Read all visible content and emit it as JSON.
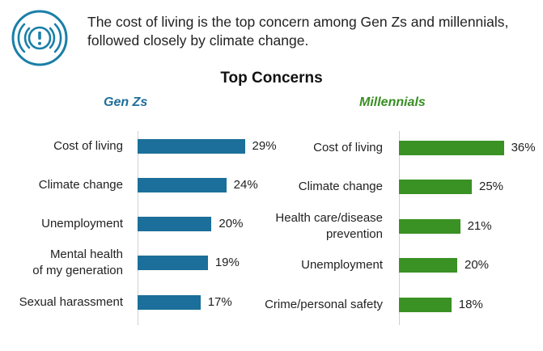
{
  "headline": "The cost of living is the top concern among Gen Zs and millennials, followed closely by climate change.",
  "icon": "alert-exclamation-icon",
  "colors": {
    "icon": "#1a7fa8",
    "genz": "#1b6f9a",
    "millennials": "#3a9124"
  },
  "chart_data": [
    {
      "type": "bar",
      "orientation": "horizontal",
      "title": "Top Concerns",
      "subtitle": "Gen Zs",
      "categories": [
        "Cost of living",
        "Climate change",
        "Unemployment",
        "Mental health\nof my generation",
        "Sexual harassment"
      ],
      "values": [
        29,
        24,
        20,
        19,
        17
      ],
      "value_labels": [
        "29%",
        "24%",
        "20%",
        "19%",
        "17%"
      ],
      "unit": "%",
      "xlim": [
        0,
        40
      ],
      "grid": false,
      "legend": "none"
    },
    {
      "type": "bar",
      "orientation": "horizontal",
      "title": "Top Concerns",
      "subtitle": "Millennials",
      "categories": [
        "Cost of living",
        "Climate change",
        "Health care/disease\nprevention",
        "Unemployment",
        "Crime/personal safety"
      ],
      "values": [
        36,
        25,
        21,
        20,
        18
      ],
      "value_labels": [
        "36%",
        "25%",
        "21%",
        "20%",
        "18%"
      ],
      "unit": "%",
      "xlim": [
        0,
        40
      ],
      "grid": false,
      "legend": "none"
    }
  ]
}
